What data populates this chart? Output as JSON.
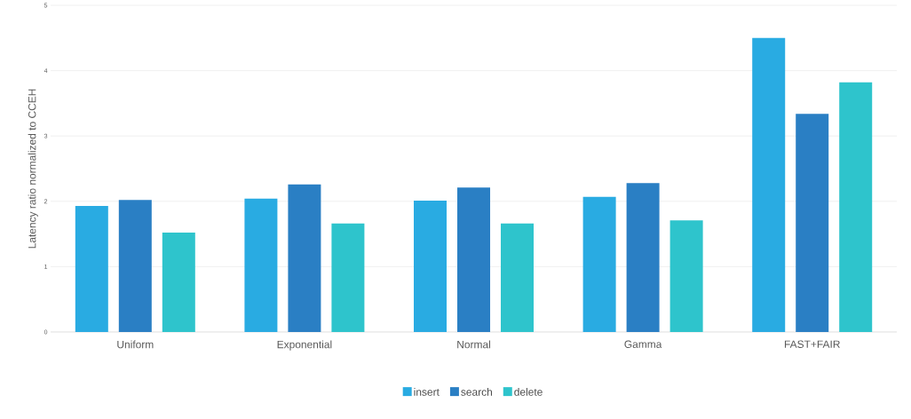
{
  "chart_data": {
    "type": "bar",
    "ylabel": "Latency ratio normalized to CCEH",
    "categories": [
      "Uniform",
      "Exponential",
      "Normal",
      "Gamma",
      "FAST+FAIR"
    ],
    "series": [
      {
        "name": "insert",
        "color": "#29abe2",
        "values": [
          1.93,
          2.04,
          2.01,
          2.07,
          4.5
        ]
      },
      {
        "name": "search",
        "color": "#2a7fc4",
        "values": [
          2.02,
          2.26,
          2.21,
          2.28,
          3.34
        ]
      },
      {
        "name": "delete",
        "color": "#2ec4cc",
        "values": [
          1.52,
          1.66,
          1.66,
          1.71,
          3.82
        ]
      }
    ],
    "ylim": [
      0,
      5
    ],
    "yticks": [
      0,
      1,
      2,
      3,
      4,
      5
    ],
    "grid": "y",
    "legend": "bottom"
  }
}
